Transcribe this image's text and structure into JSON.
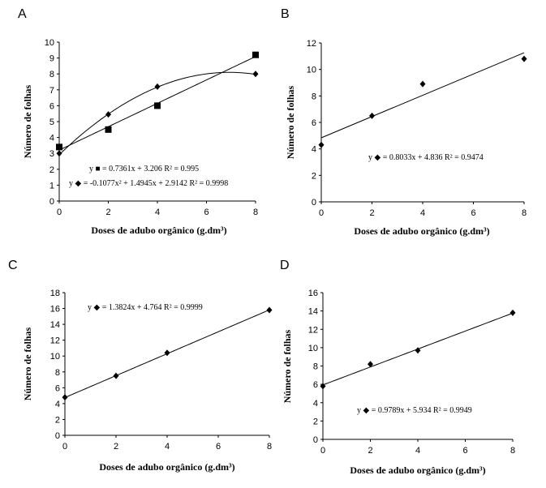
{
  "chart_data": [
    {
      "type": "scatter",
      "panel_label": "A",
      "xlabel": "Doses de adubo orgânico  (g.dm³)",
      "ylabel": "Número  de  folhas",
      "xlim": [
        0,
        8
      ],
      "ylim": [
        0,
        10
      ],
      "x_ticks": [
        0,
        2,
        4,
        6,
        8
      ],
      "y_ticks": [
        0,
        1,
        2,
        3,
        4,
        5,
        6,
        7,
        8,
        9,
        10
      ],
      "series": [
        {
          "marker": "square",
          "x": [
            0,
            2,
            4,
            8
          ],
          "y": [
            3.4,
            4.5,
            6.0,
            9.2
          ],
          "fit": {
            "kind": "linear",
            "coef": [
              0.7361,
              3.206
            ]
          },
          "equation": "y ■ = 0.7361x  + 3.206  R² = 0.995"
        },
        {
          "marker": "diamond",
          "x": [
            0,
            2,
            4,
            8
          ],
          "y": [
            3.0,
            5.45,
            7.2,
            8.0
          ],
          "fit": {
            "kind": "quadratic",
            "coef": [
              -0.1077,
              1.4945,
              2.9142
            ]
          },
          "equation": "y ◆ = -0.1077x²  + 1.4945x  + 2.9142  R² = 0.9998"
        }
      ]
    },
    {
      "type": "scatter",
      "panel_label": "B",
      "xlabel": "Doses de adubo  orgânico  (g.dm³)",
      "ylabel": "Número  de  folhas",
      "xlim": [
        0,
        8
      ],
      "ylim": [
        0,
        12
      ],
      "x_ticks": [
        0,
        2,
        4,
        6,
        8
      ],
      "y_ticks": [
        0,
        2,
        4,
        6,
        8,
        10,
        12
      ],
      "series": [
        {
          "marker": "diamond",
          "x": [
            0,
            2,
            4,
            8
          ],
          "y": [
            4.3,
            6.5,
            8.9,
            10.8
          ],
          "fit": {
            "kind": "linear",
            "coef": [
              0.8033,
              4.836
            ]
          },
          "equation": "y ◆ = 0.8033x  + 4.836  R² = 0.9474"
        }
      ]
    },
    {
      "type": "scatter",
      "panel_label": "C",
      "xlabel": "Doses de adubo  orgânico  (g.dm³)",
      "ylabel": "Número  de  folhas",
      "xlim": [
        0,
        8
      ],
      "ylim": [
        0,
        18
      ],
      "x_ticks": [
        0,
        2,
        4,
        6,
        8
      ],
      "y_ticks": [
        0,
        2,
        4,
        6,
        8,
        10,
        12,
        14,
        16,
        18
      ],
      "series": [
        {
          "marker": "diamond",
          "x": [
            0,
            2,
            4,
            8
          ],
          "y": [
            4.8,
            7.5,
            10.4,
            15.8
          ],
          "fit": {
            "kind": "linear",
            "coef": [
              1.3824,
              4.764
            ]
          },
          "equation": "y ◆ = 1.3824x  + 4.764  R² = 0.9999"
        }
      ]
    },
    {
      "type": "scatter",
      "panel_label": "D",
      "xlabel": "Doses de adubo  orgânico  (g.dm³)",
      "ylabel": "Número  de  folhas",
      "xlim": [
        0,
        8
      ],
      "ylim": [
        0,
        16
      ],
      "x_ticks": [
        0,
        2,
        4,
        6,
        8
      ],
      "y_ticks": [
        0,
        2,
        4,
        6,
        8,
        10,
        12,
        14,
        16
      ],
      "series": [
        {
          "marker": "diamond",
          "x": [
            0,
            2,
            4,
            8
          ],
          "y": [
            5.8,
            8.2,
            9.7,
            13.8
          ],
          "fit": {
            "kind": "linear",
            "coef": [
              0.9789,
              5.934
            ]
          },
          "equation": "y ◆ = 0.9789x  + 5.934  R² = 0.9949"
        }
      ]
    }
  ]
}
